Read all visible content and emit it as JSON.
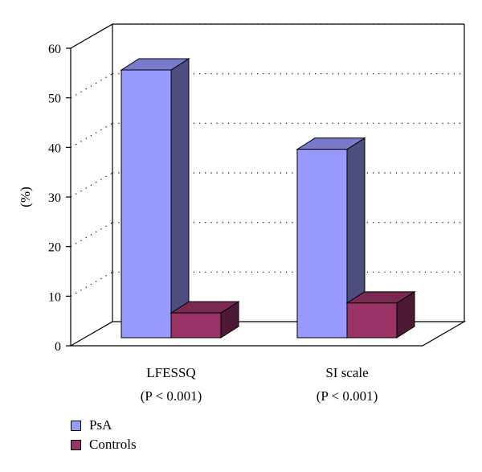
{
  "chart_data": {
    "type": "bar",
    "ylabel": "(%)",
    "ylim": [
      0,
      60
    ],
    "yticks": [
      0,
      10,
      20,
      30,
      40,
      50,
      60
    ],
    "grid": true,
    "legend_position": "bottom-left",
    "categories": [
      {
        "name": "LFESSQ",
        "sub": "(P < 0.001)"
      },
      {
        "name": "SI scale",
        "sub": "(P < 0.001)"
      }
    ],
    "series": [
      {
        "name": "PsA",
        "values": [
          54,
          38
        ],
        "color": "#9999ff",
        "side_color": "#4d4d80",
        "top_color": "#7a7acc"
      },
      {
        "name": "Controls",
        "values": [
          5,
          7
        ],
        "color": "#993366",
        "side_color": "#4d1933",
        "top_color": "#7a2952"
      }
    ]
  }
}
